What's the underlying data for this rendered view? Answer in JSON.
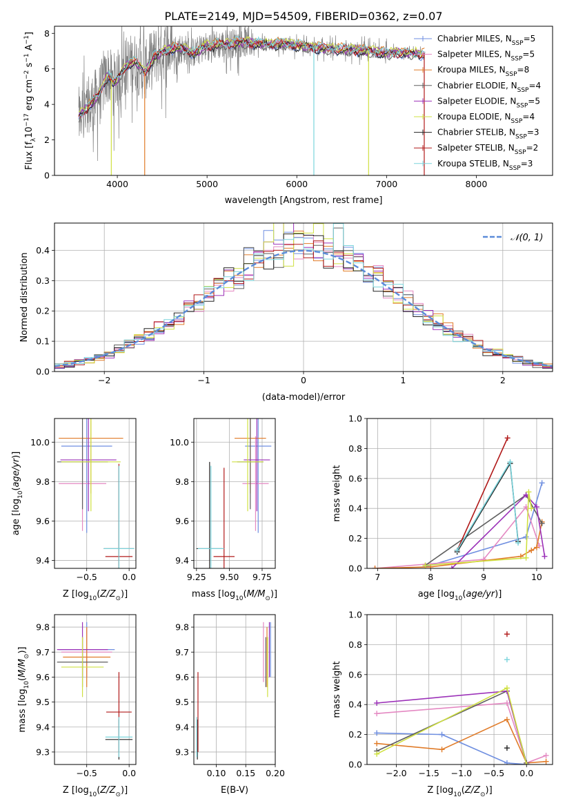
{
  "figure": {
    "title": "PLATE=2149, MJD=54509, FIBERID=0362, z=0.07"
  },
  "series_styles": [
    {
      "name": "Chabrier MILES",
      "nssp": "5",
      "color": "#6e8ee0"
    },
    {
      "name": "Salpeter MILES",
      "nssp": "5",
      "color": "#e488c2"
    },
    {
      "name": "Kroupa MILES",
      "nssp": "8",
      "color": "#e07b28"
    },
    {
      "name": "Chabrier ELODIE",
      "nssp": "4",
      "color": "#5e5e5e"
    },
    {
      "name": "Salpeter ELODIE",
      "nssp": "5",
      "color": "#9b30b8"
    },
    {
      "name": "Kroupa ELODIE",
      "nssp": "4",
      "color": "#cfe040"
    },
    {
      "name": "Chabrier STELIB",
      "nssp": "3",
      "color": "#222222"
    },
    {
      "name": "Salpeter STELIB",
      "nssp": "2",
      "color": "#b01818"
    },
    {
      "name": "Kroupa STELIB",
      "nssp": "3",
      "color": "#7ad4dc"
    }
  ],
  "chart_data": [
    {
      "id": "spectrum",
      "type": "line",
      "title": "PLATE=2149, MJD=54509, FIBERID=0362, z=0.07",
      "xlabel": "wavelength [Angstrom, rest frame]",
      "ylabel": "Flux [f_λ 10^-17 erg cm^-2 s^-1 A^-1]",
      "xlim": [
        3300,
        8850
      ],
      "ylim": [
        0,
        8.4
      ],
      "xticks": [
        4000,
        5000,
        6000,
        7000,
        8000
      ],
      "yticks": [
        0,
        2,
        4,
        6,
        8
      ],
      "grid": false,
      "legend_position": "right",
      "observed": {
        "color": "#808080",
        "x_start": 3570,
        "x_end": 7430
      },
      "model_continuum": {
        "x": [
          3570,
          3700,
          3800,
          3900,
          3950,
          4000,
          4100,
          4200,
          4300,
          4400,
          4500,
          4700,
          4860,
          5000,
          5200,
          5400,
          5600,
          5900,
          6200,
          6500,
          6800,
          7000,
          7200,
          7430
        ],
        "y": [
          3.3,
          4.0,
          4.6,
          5.7,
          5.2,
          5.4,
          6.2,
          6.4,
          5.8,
          6.6,
          7.0,
          7.2,
          6.9,
          7.3,
          7.4,
          7.5,
          7.4,
          7.4,
          7.2,
          7.1,
          7.0,
          6.9,
          6.9,
          6.8
        ]
      }
    },
    {
      "id": "residuals",
      "type": "histogram",
      "xlabel": "(data-model)/error",
      "ylabel": "Normed distribution",
      "xlim": [
        -2.5,
        2.5
      ],
      "ylim": [
        0,
        0.49
      ],
      "xticks": [
        -2,
        -1,
        0,
        1,
        2
      ],
      "yticks": [
        0.0,
        0.1,
        0.2,
        0.3,
        0.4
      ],
      "grid": true,
      "legend": "𝒩(0, 1)",
      "legend_position": "top-right",
      "reference_curve": {
        "name": "N(0,1)",
        "color": "#5b8bd9",
        "style": "dashed"
      },
      "bin_width": 0.1
    },
    {
      "id": "age_vs_Z",
      "type": "errorbar",
      "xlabel": "Z [log10(Z/Z⊙)]",
      "ylabel": "age  [log10(age/yr)]",
      "xlim": [
        -0.88,
        0.08
      ],
      "ylim": [
        9.36,
        10.12
      ],
      "xticks": [
        -0.5,
        0.0
      ],
      "yticks": [
        9.4,
        9.6,
        9.8,
        10.0
      ],
      "grid": true,
      "points": [
        {
          "series": "Chabrier MILES",
          "x": -0.5,
          "y": 9.98,
          "xerr": 0.3,
          "yerr": 0.44
        },
        {
          "series": "Salpeter MILES",
          "x": -0.55,
          "y": 9.79,
          "xerr": 0.28,
          "yerr": 0.24
        },
        {
          "series": "Kroupa MILES",
          "x": -0.45,
          "y": 10.02,
          "xerr": 0.38,
          "yerr": 0.28
        },
        {
          "series": "Chabrier ELODIE",
          "x": -0.55,
          "y": 9.9,
          "xerr": 0.3,
          "yerr": 0.24
        },
        {
          "series": "Salpeter ELODIE",
          "x": -0.48,
          "y": 9.91,
          "xerr": 0.33,
          "yerr": 0.26
        },
        {
          "series": "Kroupa ELODIE",
          "x": -0.45,
          "y": 9.9,
          "xerr": 0.35,
          "yerr": 0.25
        },
        {
          "series": "Chabrier STELIB",
          "x": -0.12,
          "y": 9.46,
          "xerr": 0.18,
          "yerr": 0.42
        },
        {
          "series": "Salpeter STELIB",
          "x": -0.12,
          "y": 9.42,
          "xerr": 0.16,
          "yerr": 0.47
        },
        {
          "series": "Kroupa STELIB",
          "x": -0.12,
          "y": 9.46,
          "xerr": 0.18,
          "yerr": 0.42
        }
      ]
    },
    {
      "id": "age_vs_mass",
      "type": "errorbar",
      "xlabel": "mass [log10(M/M⊙)]",
      "ylabel": "",
      "xlim": [
        9.23,
        9.85
      ],
      "ylim": [
        9.36,
        10.12
      ],
      "xticks": [
        9.25,
        9.5,
        9.75
      ],
      "yticks": [
        9.4,
        9.6,
        9.8,
        10.0
      ],
      "grid": true,
      "points": [
        {
          "series": "Chabrier MILES",
          "x": 9.72,
          "y": 9.98,
          "xerr": 0.1,
          "yerr": 0.44
        },
        {
          "series": "Salpeter MILES",
          "x": 9.7,
          "y": 9.79,
          "xerr": 0.1,
          "yerr": 0.24
        },
        {
          "series": "Kroupa MILES",
          "x": 9.66,
          "y": 10.02,
          "xerr": 0.12,
          "yerr": 0.28
        },
        {
          "series": "Chabrier ELODIE",
          "x": 9.66,
          "y": 9.9,
          "xerr": 0.1,
          "yerr": 0.24
        },
        {
          "series": "Salpeter ELODIE",
          "x": 9.71,
          "y": 9.91,
          "xerr": 0.1,
          "yerr": 0.26
        },
        {
          "series": "Kroupa ELODIE",
          "x": 9.64,
          "y": 9.9,
          "xerr": 0.12,
          "yerr": 0.25
        },
        {
          "series": "Chabrier STELIB",
          "x": 9.35,
          "y": 9.46,
          "xerr": 0.1,
          "yerr": 0.44
        },
        {
          "series": "Salpeter STELIB",
          "x": 9.46,
          "y": 9.42,
          "xerr": 0.08,
          "yerr": 0.45
        },
        {
          "series": "Kroupa STELIB",
          "x": 9.36,
          "y": 9.46,
          "xerr": 0.1,
          "yerr": 0.42
        }
      ]
    },
    {
      "id": "weight_vs_age",
      "type": "line",
      "xlabel": "age  [log10(age/yr)]",
      "ylabel": "mass weight",
      "xlim": [
        6.8,
        10.3
      ],
      "ylim": [
        0,
        1.0
      ],
      "xticks": [
        7,
        8,
        9,
        10
      ],
      "yticks": [
        0.0,
        0.2,
        0.4,
        0.6,
        0.8,
        1.0
      ],
      "grid": true,
      "series": [
        {
          "name": "Chabrier MILES",
          "x": [
            7.9,
            9.8,
            10.1
          ],
          "y": [
            0.01,
            0.21,
            0.57
          ]
        },
        {
          "name": "Salpeter MILES",
          "x": [
            6.95,
            9.0,
            9.8,
            10.05
          ],
          "y": [
            0.0,
            0.06,
            0.41,
            0.15
          ]
        },
        {
          "name": "Kroupa MILES",
          "x": [
            6.95,
            8.0,
            9.7,
            9.9,
            10.0,
            10.1
          ],
          "y": [
            0.0,
            0.01,
            0.08,
            0.12,
            0.14,
            0.31
          ]
        },
        {
          "name": "Chabrier ELODIE",
          "x": [
            7.9,
            9.8,
            10.1
          ],
          "y": [
            0.02,
            0.49,
            0.3
          ]
        },
        {
          "name": "Salpeter ELODIE",
          "x": [
            8.4,
            9.8,
            10.0,
            10.15
          ],
          "y": [
            0.0,
            0.49,
            0.41,
            0.08
          ]
        },
        {
          "name": "Kroupa ELODIE",
          "x": [
            7.9,
            9.8,
            9.85,
            9.9
          ],
          "y": [
            0.02,
            0.07,
            0.51,
            0.4
          ]
        },
        {
          "name": "Chabrier STELIB",
          "x": [
            8.5,
            9.5,
            9.65
          ],
          "y": [
            0.11,
            0.7,
            0.18
          ]
        },
        {
          "name": "Salpeter STELIB",
          "x": [
            8.5,
            9.45
          ],
          "y": [
            0.12,
            0.87
          ]
        },
        {
          "name": "Kroupa STELIB",
          "x": [
            8.5,
            9.5,
            9.65
          ],
          "y": [
            0.12,
            0.71,
            0.17
          ]
        }
      ]
    },
    {
      "id": "mass_vs_Z",
      "type": "errorbar",
      "xlabel": "Z [log10(Z/Z⊙)]",
      "ylabel": "mass [log10(M/M⊙)]",
      "xlim": [
        -0.88,
        0.08
      ],
      "ylim": [
        9.25,
        9.85
      ],
      "xticks": [
        -0.5,
        0.0
      ],
      "yticks": [
        9.3,
        9.4,
        9.5,
        9.6,
        9.7,
        9.8
      ],
      "grid": true,
      "points": [
        {
          "series": "Chabrier MILES",
          "x": -0.5,
          "y": 9.71,
          "xerr": 0.33,
          "yerr": 0.11
        },
        {
          "series": "Salpeter MILES",
          "x": -0.5,
          "y": 9.7,
          "xerr": 0.3,
          "yerr": 0.1
        },
        {
          "series": "Kroupa MILES",
          "x": -0.5,
          "y": 9.68,
          "xerr": 0.28,
          "yerr": 0.12
        },
        {
          "series": "Chabrier ELODIE",
          "x": -0.55,
          "y": 9.66,
          "xerr": 0.3,
          "yerr": 0.1
        },
        {
          "series": "Salpeter ELODIE",
          "x": -0.55,
          "y": 9.71,
          "xerr": 0.3,
          "yerr": 0.11
        },
        {
          "series": "Kroupa ELODIE",
          "x": -0.55,
          "y": 9.64,
          "xerr": 0.25,
          "yerr": 0.12
        },
        {
          "series": "Chabrier STELIB",
          "x": -0.12,
          "y": 9.35,
          "xerr": 0.16,
          "yerr": 0.08
        },
        {
          "series": "Salpeter STELIB",
          "x": -0.12,
          "y": 9.46,
          "xerr": 0.15,
          "yerr": 0.16
        },
        {
          "series": "Kroupa STELIB",
          "x": -0.12,
          "y": 9.36,
          "xerr": 0.16,
          "yerr": 0.08
        }
      ]
    },
    {
      "id": "mass_vs_EBV",
      "type": "errorbar",
      "xlabel": "E(B-V)",
      "ylabel": "",
      "xlim": [
        0.062,
        0.2
      ],
      "ylim": [
        9.25,
        9.85
      ],
      "xticks": [
        0.1,
        0.15,
        0.2
      ],
      "yticks": [
        9.3,
        9.4,
        9.5,
        9.6,
        9.7,
        9.8
      ],
      "grid": true,
      "points": [
        {
          "series": "Chabrier MILES",
          "x": 0.192,
          "y": 9.71,
          "xerr": 0,
          "yerr": 0.11
        },
        {
          "series": "Salpeter MILES",
          "x": 0.18,
          "y": 9.7,
          "xerr": 0,
          "yerr": 0.12
        },
        {
          "series": "Kroupa MILES",
          "x": 0.186,
          "y": 9.68,
          "xerr": 0,
          "yerr": 0.12
        },
        {
          "series": "Chabrier ELODIE",
          "x": 0.184,
          "y": 9.66,
          "xerr": 0,
          "yerr": 0.1
        },
        {
          "series": "Salpeter ELODIE",
          "x": 0.19,
          "y": 9.71,
          "xerr": 0,
          "yerr": 0.11
        },
        {
          "series": "Kroupa ELODIE",
          "x": 0.187,
          "y": 9.64,
          "xerr": 0,
          "yerr": 0.12
        },
        {
          "series": "Chabrier STELIB",
          "x": 0.068,
          "y": 9.35,
          "xerr": 0,
          "yerr": 0.08
        },
        {
          "series": "Salpeter STELIB",
          "x": 0.069,
          "y": 9.46,
          "xerr": 0,
          "yerr": 0.16
        },
        {
          "series": "Kroupa STELIB",
          "x": 0.067,
          "y": 9.36,
          "xerr": 0,
          "yerr": 0.08
        }
      ]
    },
    {
      "id": "weight_vs_Z",
      "type": "line",
      "xlabel": "Z [log10(Z/Z⊙)]",
      "ylabel": "mass weight",
      "xlim": [
        -2.45,
        0.4
      ],
      "ylim": [
        0,
        1.0
      ],
      "xticks": [
        -2.0,
        -1.5,
        -1.0,
        -0.5,
        0.0
      ],
      "yticks": [
        0.0,
        0.2,
        0.4,
        0.6,
        0.8,
        1.0
      ],
      "grid": true,
      "series": [
        {
          "name": "Chabrier MILES",
          "x": [
            -2.3,
            -1.3,
            -0.3,
            0.0
          ],
          "y": [
            0.21,
            0.2,
            0.01,
            0.0
          ]
        },
        {
          "name": "Salpeter MILES",
          "x": [
            -2.3,
            -0.3,
            0.0,
            0.3
          ],
          "y": [
            0.34,
            0.41,
            0.01,
            0.06
          ]
        },
        {
          "name": "Kroupa MILES",
          "x": [
            -2.3,
            -1.3,
            -0.3,
            0.0,
            0.3
          ],
          "y": [
            0.14,
            0.1,
            0.3,
            0.01,
            0.02
          ]
        },
        {
          "name": "Chabrier ELODIE",
          "x": [
            -2.3,
            -0.3,
            0.0
          ],
          "y": [
            0.09,
            0.49,
            0.01
          ]
        },
        {
          "name": "Salpeter ELODIE",
          "x": [
            -2.3,
            -0.3,
            0.0
          ],
          "y": [
            0.41,
            0.49,
            0.0
          ]
        },
        {
          "name": "Kroupa ELODIE",
          "x": [
            -2.3,
            -0.3,
            0.0
          ],
          "y": [
            0.07,
            0.51,
            0.0
          ]
        },
        {
          "name": "Chabrier STELIB",
          "x": [
            -0.3
          ],
          "y": [
            0.11
          ]
        },
        {
          "name": "Salpeter STELIB",
          "x": [
            -0.3
          ],
          "y": [
            0.87
          ]
        },
        {
          "name": "Kroupa STELIB",
          "x": [
            -0.3
          ],
          "y": [
            0.7
          ]
        }
      ]
    }
  ]
}
